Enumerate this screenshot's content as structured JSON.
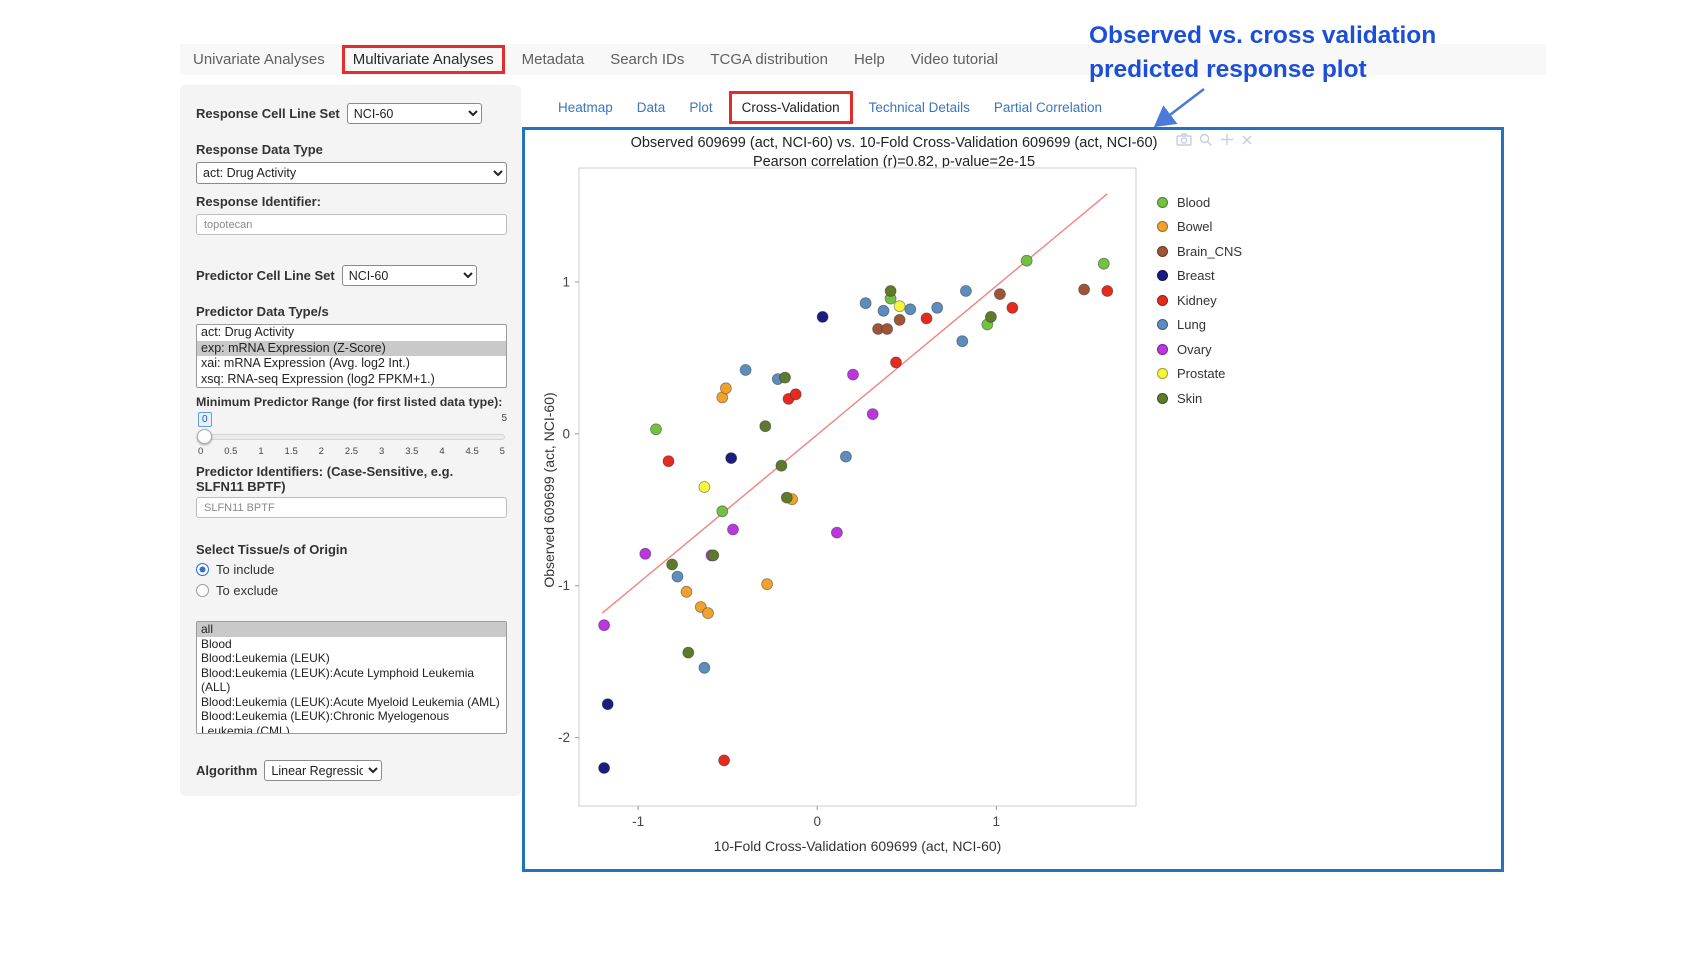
{
  "colors": {
    "highlight_box": "#e62b2c",
    "plot_border": "#2273bd",
    "annotation_text": "#1c4fd8",
    "arrow": "#4a7bd8"
  },
  "nav": {
    "tabs": [
      "Univariate Analyses",
      "Multivariate Analyses",
      "Metadata",
      "Search IDs",
      "TCGA distribution",
      "Help",
      "Video tutorial"
    ],
    "active_tab": "Multivariate Analyses"
  },
  "subtabs": {
    "items": [
      "Heatmap",
      "Data",
      "Plot",
      "Cross-Validation",
      "Technical Details",
      "Partial Correlation"
    ],
    "active": "Cross-Validation"
  },
  "sidebar": {
    "response_cell_line_set": {
      "label": "Response Cell Line Set",
      "value": "NCI-60"
    },
    "response_data_type": {
      "label": "Response Data Type",
      "value": "act: Drug Activity"
    },
    "response_identifier": {
      "label": "Response Identifier:",
      "value": "topotecan"
    },
    "predictor_cell_line_set": {
      "label": "Predictor Cell Line Set",
      "value": "NCI-60"
    },
    "predictor_data_types": {
      "label": "Predictor Data Type/s",
      "options": [
        "act: Drug Activity",
        "exp: mRNA Expression (Z-Score)",
        "xai: mRNA Expression (Avg. log2 Int.)",
        "xsq: RNA-seq Expression (log2 FPKM+1.)"
      ],
      "selected": "exp: mRNA Expression (Z-Score)"
    },
    "min_predictor_range": {
      "label": "Minimum Predictor Range (for first listed data type):",
      "value": "0",
      "max": "5",
      "ticks": [
        "0",
        "0.5",
        "1",
        "1.5",
        "2",
        "2.5",
        "3",
        "3.5",
        "4",
        "4.5",
        "5"
      ]
    },
    "predictor_identifiers": {
      "label": "Predictor Identifiers: (Case-Sensitive, e.g. SLFN11 BPTF)",
      "value": "SLFN11 BPTF"
    },
    "tissue": {
      "label": "Select Tissue/s of Origin",
      "include_label": "To include",
      "exclude_label": "To exclude",
      "include_checked": true,
      "options": [
        "all",
        "Blood",
        "Blood:Leukemia (LEUK)",
        "Blood:Leukemia (LEUK):Acute Lymphoid Leukemia (ALL)",
        "Blood:Leukemia (LEUK):Acute Myeloid Leukemia (AML)",
        "Blood:Leukemia (LEUK):Chronic Myelogenous Leukemia (CML)"
      ],
      "selected": "all"
    },
    "algorithm": {
      "label": "Algorithm",
      "value": "Linear Regression"
    }
  },
  "annotation": {
    "line1": "Observed vs. cross validation",
    "line2": "predicted response plot"
  },
  "modebar_icons": [
    "camera",
    "zoom",
    "pan",
    "close"
  ],
  "chart_data": {
    "type": "scatter",
    "title": "Observed 609699 (act, NCI-60) vs. 10-Fold Cross-Validation 609699 (act, NCI-60)",
    "subtitle": "Pearson correlation (r)=0.82, p-value=2e-15",
    "xlabel": "10-Fold Cross-Validation 609699 (act, NCI-60)",
    "ylabel": "Observed 609699 (act, NCI-60)",
    "xlim": [
      -1.33,
      1.78
    ],
    "ylim": [
      -2.45,
      1.75
    ],
    "xticks": [
      -1,
      0,
      1
    ],
    "yticks": [
      -2,
      -1,
      0,
      1
    ],
    "grid": false,
    "legend_position": "right",
    "regression_line": {
      "x1": -1.2,
      "y1": -1.18,
      "x2": 1.62,
      "y2": 1.58,
      "color": "#f4827f"
    },
    "series": [
      {
        "name": "Blood",
        "color": "#74c043",
        "points": [
          [
            -0.9,
            0.03
          ],
          [
            -0.53,
            -0.51
          ],
          [
            0.41,
            0.89
          ],
          [
            0.95,
            0.72
          ],
          [
            1.17,
            1.14
          ],
          [
            1.6,
            1.12
          ]
        ]
      },
      {
        "name": "Bowel",
        "color": "#f0a22e",
        "points": [
          [
            -0.73,
            -1.04
          ],
          [
            -0.65,
            -1.14
          ],
          [
            -0.61,
            -1.18
          ],
          [
            -0.53,
            0.24
          ],
          [
            -0.51,
            0.3
          ],
          [
            -0.28,
            -0.99
          ],
          [
            -0.14,
            -0.43
          ]
        ]
      },
      {
        "name": "Brain_CNS",
        "color": "#9e5537",
        "points": [
          [
            0.34,
            0.69
          ],
          [
            0.39,
            0.69
          ],
          [
            0.46,
            0.75
          ],
          [
            1.02,
            0.92
          ],
          [
            1.49,
            0.95
          ]
        ]
      },
      {
        "name": "Breast",
        "color": "#1b1b80",
        "points": [
          [
            -1.19,
            -2.2
          ],
          [
            -1.17,
            -1.78
          ],
          [
            -0.48,
            -0.16
          ],
          [
            0.03,
            0.77
          ]
        ]
      },
      {
        "name": "Kidney",
        "color": "#e52b1d",
        "points": [
          [
            -0.83,
            -0.18
          ],
          [
            -0.52,
            -2.15
          ],
          [
            -0.16,
            0.23
          ],
          [
            -0.12,
            0.26
          ],
          [
            0.44,
            0.47
          ],
          [
            0.61,
            0.76
          ],
          [
            1.09,
            0.83
          ],
          [
            1.62,
            0.94
          ]
        ]
      },
      {
        "name": "Lung",
        "color": "#5d8dbe",
        "points": [
          [
            -0.78,
            -0.94
          ],
          [
            -0.63,
            -1.54
          ],
          [
            -0.4,
            0.42
          ],
          [
            -0.22,
            0.36
          ],
          [
            0.16,
            -0.15
          ],
          [
            0.27,
            0.86
          ],
          [
            0.37,
            0.81
          ],
          [
            0.52,
            0.82
          ],
          [
            0.67,
            0.83
          ],
          [
            0.81,
            0.61
          ],
          [
            0.83,
            0.94
          ]
        ]
      },
      {
        "name": "Ovary",
        "color": "#bc36e0",
        "points": [
          [
            -1.19,
            -1.26
          ],
          [
            -0.96,
            -0.79
          ],
          [
            -0.59,
            -0.8
          ],
          [
            -0.47,
            -0.63
          ],
          [
            0.11,
            -0.65
          ],
          [
            0.2,
            0.39
          ],
          [
            0.31,
            0.13
          ]
        ]
      },
      {
        "name": "Prostate",
        "color": "#f6f63b",
        "points": [
          [
            -0.63,
            -0.35
          ],
          [
            0.46,
            0.84
          ]
        ]
      },
      {
        "name": "Skin",
        "color": "#5e7a2a",
        "points": [
          [
            -0.81,
            -0.86
          ],
          [
            -0.72,
            -1.44
          ],
          [
            -0.58,
            -0.8
          ],
          [
            -0.29,
            0.05
          ],
          [
            -0.2,
            -0.21
          ],
          [
            -0.18,
            0.37
          ],
          [
            -0.17,
            -0.42
          ],
          [
            0.41,
            0.94
          ],
          [
            0.97,
            0.77
          ]
        ]
      }
    ]
  }
}
